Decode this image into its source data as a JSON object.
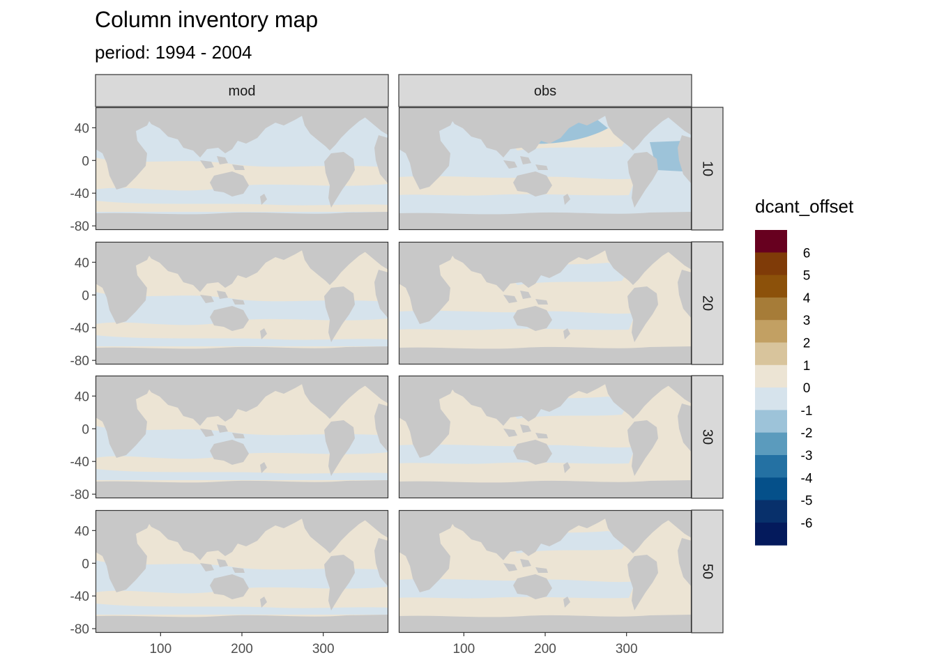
{
  "chart_data": {
    "type": "heatmap",
    "title": "Column inventory map",
    "subtitle": "period: 1994 - 2004",
    "facet_columns": [
      "mod",
      "obs"
    ],
    "facet_rows": [
      "10",
      "20",
      "30",
      "50"
    ],
    "x_ticks": [
      100,
      200,
      300
    ],
    "x_lim": [
      20,
      380
    ],
    "y_ticks": [
      40,
      0,
      -40,
      -80
    ],
    "y_lim": [
      -85,
      65
    ],
    "legend": {
      "title": "dcant_offset",
      "placement": "right",
      "labels": [
        "6",
        "5",
        "4",
        "3",
        "2",
        "1",
        "0",
        "-1",
        "-2",
        "-3",
        "-4",
        "-5",
        "-6"
      ],
      "colors": [
        "#67001f",
        "#7f3b08",
        "#8c510a",
        "#a67c38",
        "#c2a063",
        "#d8c49c",
        "#ece4d4",
        "#d6e3ec",
        "#9dc3d9",
        "#5b9bbd",
        "#2471a3",
        "#05508a",
        "#08306b",
        "#041a5c"
      ]
    },
    "panels": [
      {
        "col": "mod",
        "row": "10",
        "dominant_bin": "-1 to 0"
      },
      {
        "col": "obs",
        "row": "10",
        "dominant_bin": "-1 to 0"
      },
      {
        "col": "mod",
        "row": "20",
        "dominant_bin": "0 to 1"
      },
      {
        "col": "obs",
        "row": "20",
        "dominant_bin": "0 to 1"
      },
      {
        "col": "mod",
        "row": "30",
        "dominant_bin": "0 to 1"
      },
      {
        "col": "obs",
        "row": "30",
        "dominant_bin": "0 to 1"
      },
      {
        "col": "mod",
        "row": "50",
        "dominant_bin": "0 to 1"
      },
      {
        "col": "obs",
        "row": "50",
        "dominant_bin": "0 to 1"
      }
    ],
    "land_color": "#c8c8c8",
    "strip_color": "#d9d9d9"
  }
}
